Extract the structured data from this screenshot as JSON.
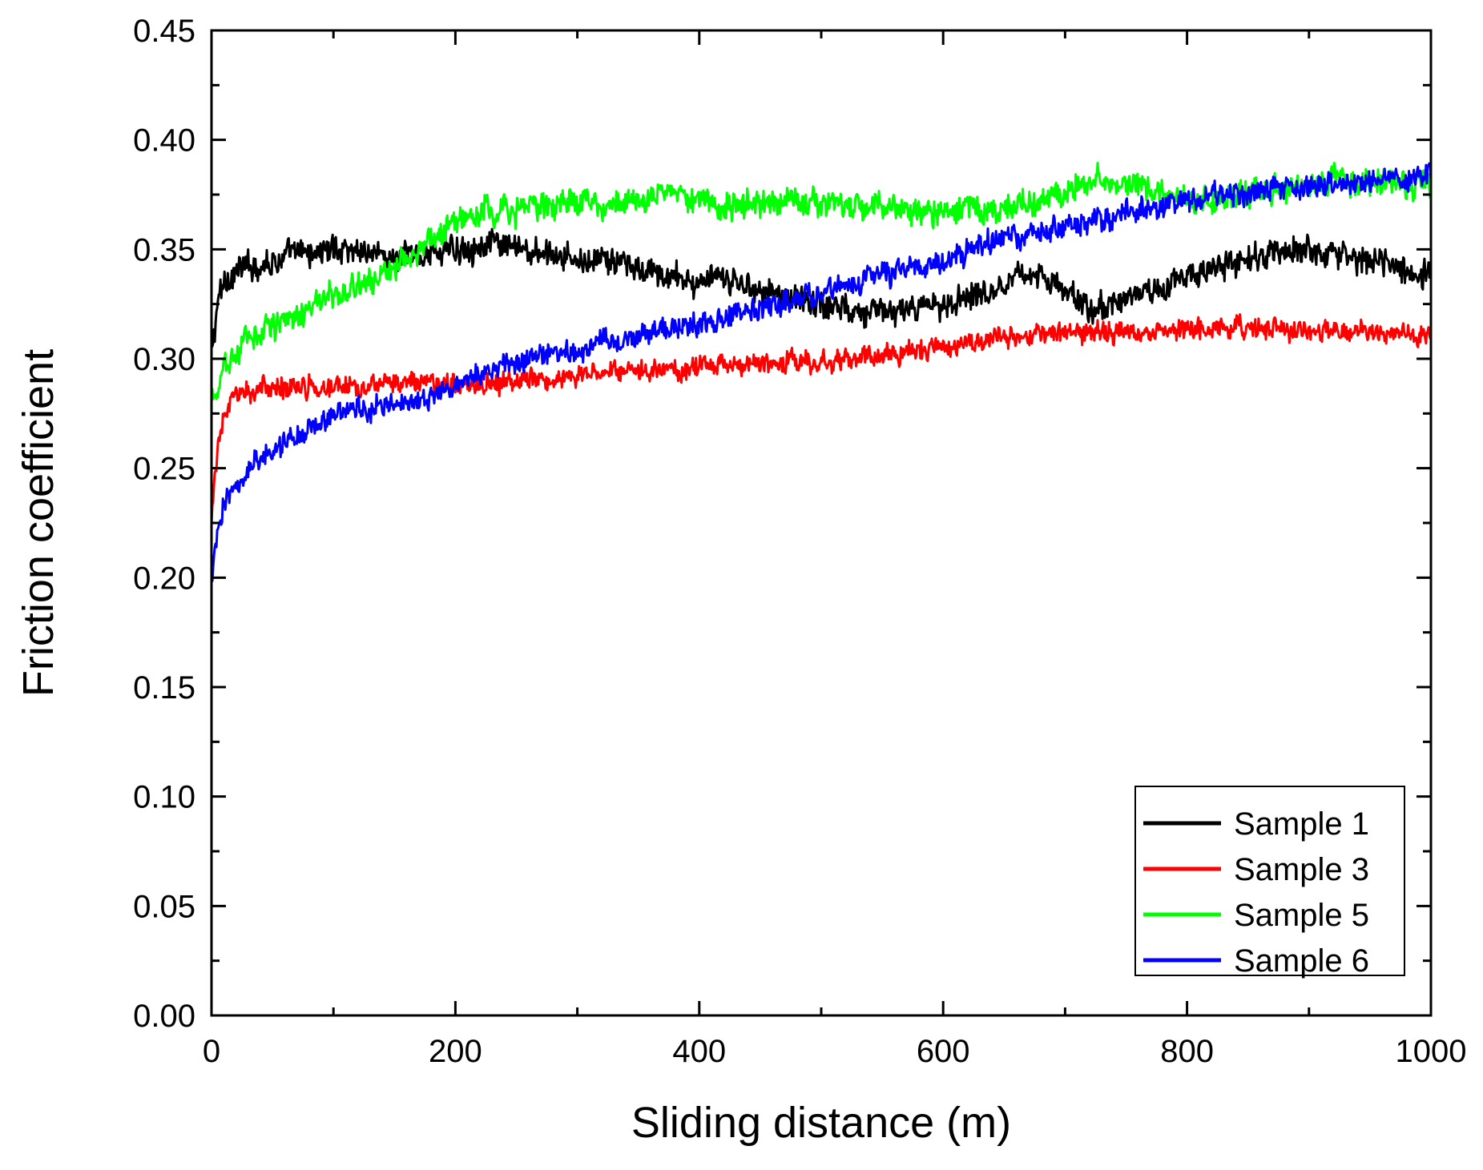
{
  "chart_data": {
    "type": "line",
    "title": "",
    "xlabel": "Sliding distance (m)",
    "ylabel": "Friction coefficient",
    "xlim": [
      0,
      1000
    ],
    "ylim": [
      0,
      0.45
    ],
    "x_ticks": [
      0,
      200,
      400,
      600,
      800,
      1000
    ],
    "x_tick_labels": [
      "0",
      "200",
      "400",
      "600",
      "800",
      "1000"
    ],
    "y_ticks": [
      0,
      0.05,
      0.1,
      0.15,
      0.2,
      0.25,
      0.3,
      0.35,
      0.4,
      0.45
    ],
    "y_tick_labels": [
      "0.00",
      "0.05",
      "0.10",
      "0.15",
      "0.20",
      "0.25",
      "0.30",
      "0.35",
      "0.40",
      "0.45"
    ],
    "grid": false,
    "legend_position": "bottom-right",
    "x": [
      0,
      5,
      10,
      20,
      30,
      50,
      75,
      100,
      125,
      150,
      175,
      200,
      225,
      250,
      275,
      300,
      325,
      350,
      375,
      400,
      425,
      450,
      475,
      500,
      525,
      550,
      575,
      600,
      625,
      650,
      675,
      700,
      725,
      750,
      775,
      800,
      825,
      850,
      875,
      900,
      925,
      950,
      975,
      1000
    ],
    "series": [
      {
        "name": "Sample 1",
        "color": "#000000",
        "noise": 0.008,
        "values": [
          0.3,
          0.325,
          0.335,
          0.34,
          0.342,
          0.345,
          0.348,
          0.35,
          0.35,
          0.345,
          0.348,
          0.35,
          0.352,
          0.35,
          0.348,
          0.345,
          0.345,
          0.34,
          0.338,
          0.335,
          0.335,
          0.332,
          0.328,
          0.325,
          0.323,
          0.322,
          0.322,
          0.325,
          0.33,
          0.335,
          0.34,
          0.33,
          0.322,
          0.328,
          0.332,
          0.338,
          0.342,
          0.345,
          0.348,
          0.35,
          0.348,
          0.345,
          0.34,
          0.338
        ]
      },
      {
        "name": "Sample 3",
        "color": "#ff0000",
        "noise": 0.006,
        "values": [
          0.225,
          0.258,
          0.275,
          0.282,
          0.285,
          0.287,
          0.288,
          0.288,
          0.288,
          0.288,
          0.288,
          0.288,
          0.289,
          0.29,
          0.291,
          0.292,
          0.293,
          0.294,
          0.295,
          0.296,
          0.297,
          0.298,
          0.298,
          0.299,
          0.3,
          0.302,
          0.304,
          0.305,
          0.308,
          0.31,
          0.311,
          0.312,
          0.312,
          0.313,
          0.313,
          0.314,
          0.314,
          0.315,
          0.314,
          0.313,
          0.313,
          0.312,
          0.311,
          0.31
        ]
      },
      {
        "name": "Sample 5",
        "color": "#00ff00",
        "noise": 0.008,
        "values": [
          0.278,
          0.285,
          0.295,
          0.303,
          0.31,
          0.316,
          0.322,
          0.328,
          0.335,
          0.342,
          0.352,
          0.362,
          0.367,
          0.368,
          0.37,
          0.372,
          0.37,
          0.372,
          0.378,
          0.372,
          0.37,
          0.37,
          0.372,
          0.371,
          0.37,
          0.369,
          0.368,
          0.367,
          0.368,
          0.368,
          0.372,
          0.376,
          0.382,
          0.38,
          0.376,
          0.372,
          0.372,
          0.375,
          0.378,
          0.38,
          0.382,
          0.38,
          0.38,
          0.378
        ]
      },
      {
        "name": "Sample 6",
        "color": "#0000ff",
        "noise": 0.007,
        "values": [
          0.2,
          0.22,
          0.232,
          0.242,
          0.25,
          0.258,
          0.267,
          0.273,
          0.278,
          0.28,
          0.283,
          0.288,
          0.293,
          0.298,
          0.302,
          0.305,
          0.308,
          0.311,
          0.314,
          0.316,
          0.32,
          0.322,
          0.326,
          0.33,
          0.334,
          0.338,
          0.341,
          0.345,
          0.35,
          0.355,
          0.358,
          0.36,
          0.363,
          0.366,
          0.37,
          0.372,
          0.374,
          0.376,
          0.378,
          0.378,
          0.38,
          0.381,
          0.382,
          0.383
        ]
      }
    ]
  }
}
